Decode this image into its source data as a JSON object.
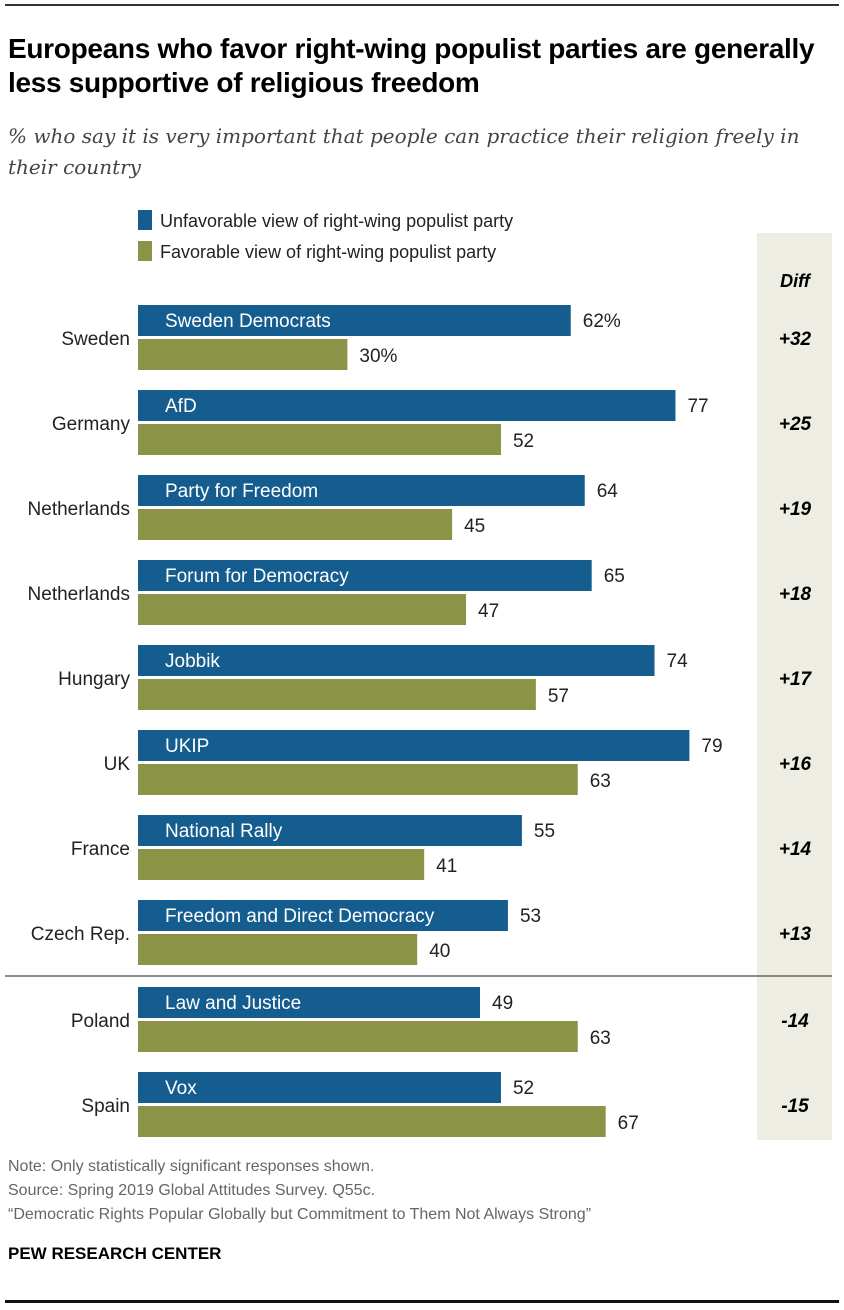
{
  "chart_data": {
    "type": "bar",
    "orientation": "horizontal",
    "title": "Europeans who favor right-wing populist parties are generally less supportive of religious freedom",
    "subtitle": "% who say it is very important that people can practice their religion freely in their country",
    "xlim": [
      0,
      100
    ],
    "grid": false,
    "legend_placement": "top",
    "diff_header": "Diff",
    "series": [
      {
        "name": "Unfavorable view of right-wing populist party",
        "color": "#165d8f"
      },
      {
        "name": "Favorable view of right-wing populist party",
        "color": "#8a9346"
      }
    ],
    "rows": [
      {
        "country": "Sweden",
        "party": "Sweden Democrats",
        "unfavorable": 62,
        "favorable": 30,
        "unfavorable_label": "62%",
        "favorable_label": "30%",
        "diff": "+32"
      },
      {
        "country": "Germany",
        "party": "AfD",
        "unfavorable": 77,
        "favorable": 52,
        "unfavorable_label": "77",
        "favorable_label": "52",
        "diff": "+25"
      },
      {
        "country": "Netherlands",
        "party": "Party for Freedom",
        "unfavorable": 64,
        "favorable": 45,
        "unfavorable_label": "64",
        "favorable_label": "45",
        "diff": "+19"
      },
      {
        "country": "Netherlands",
        "party": "Forum for Democracy",
        "unfavorable": 65,
        "favorable": 47,
        "unfavorable_label": "65",
        "favorable_label": "47",
        "diff": "+18"
      },
      {
        "country": "Hungary",
        "party": "Jobbik",
        "unfavorable": 74,
        "favorable": 57,
        "unfavorable_label": "74",
        "favorable_label": "57",
        "diff": "+17"
      },
      {
        "country": "UK",
        "party": "UKIP",
        "unfavorable": 79,
        "favorable": 63,
        "unfavorable_label": "79",
        "favorable_label": "63",
        "diff": "+16"
      },
      {
        "country": "France",
        "party": "National Rally",
        "unfavorable": 55,
        "favorable": 41,
        "unfavorable_label": "55",
        "favorable_label": "41",
        "diff": "+14"
      },
      {
        "country": "Czech Rep.",
        "party": "Freedom and Direct Democracy",
        "unfavorable": 53,
        "favorable": 40,
        "unfavorable_label": "53",
        "favorable_label": "40",
        "diff": "+13"
      },
      {
        "country": "Poland",
        "party": "Law and Justice",
        "unfavorable": 49,
        "favorable": 63,
        "unfavorable_label": "49",
        "favorable_label": "63",
        "diff": "-14"
      },
      {
        "country": "Spain",
        "party": "Vox",
        "unfavorable": 52,
        "favorable": 67,
        "unfavorable_label": "52",
        "favorable_label": "67",
        "diff": "-15"
      }
    ],
    "diff_background": "#edede3"
  },
  "footer": {
    "note": "Note: Only statistically significant responses shown.",
    "source": "Source: Spring 2019 Global Attitudes Survey. Q55c.",
    "report": "“Democratic Rights Popular Globally but Commitment to Them Not Always Strong”",
    "brand": "PEW RESEARCH CENTER"
  }
}
